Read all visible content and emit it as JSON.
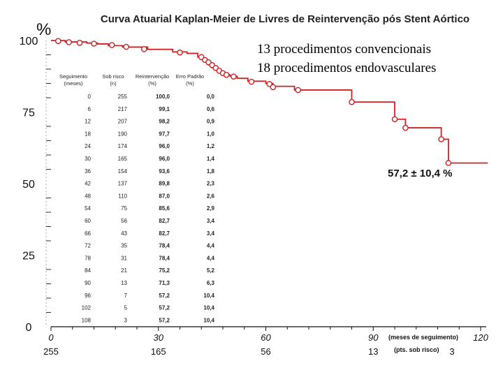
{
  "chart_data": {
    "type": "line",
    "title": "Curva Atuarial Kaplan-Meier de Livres de Reintervenção pós Stent Aórtico",
    "ylabel": "%",
    "xlabel": "(meses de seguimento)",
    "at_risk_label": "(pts. sob risco)",
    "xlim": [
      0,
      120
    ],
    "ylim": [
      0,
      100
    ],
    "x_ticks": [
      "0",
      "30",
      "60",
      "90",
      "120"
    ],
    "y_ticks": [
      "0",
      "25",
      "50",
      "75",
      "100"
    ],
    "at_risk": [
      {
        "x": 0,
        "label": "255"
      },
      {
        "x": 30,
        "label": "165"
      },
      {
        "x": 60,
        "label": "56"
      },
      {
        "x": 90,
        "label": "13"
      },
      {
        "x": 112,
        "label": "3"
      }
    ],
    "final_annotation": "57,2 ± 10,4 %",
    "legend_lines": [
      "13 procedimentos convencionais",
      "18 procedimentos endovasculares"
    ],
    "series": [
      {
        "color": "#cc2222",
        "steps": [
          [
            0,
            100.0
          ],
          [
            4,
            99.5
          ],
          [
            10,
            99.1
          ],
          [
            13,
            98.8
          ],
          [
            16,
            98.2
          ],
          [
            20,
            97.7
          ],
          [
            27,
            96.9
          ],
          [
            34,
            96.0
          ],
          [
            38,
            95.5
          ],
          [
            41,
            94.2
          ],
          [
            42,
            93.5
          ],
          [
            43,
            92.5
          ],
          [
            44,
            91.5
          ],
          [
            45,
            90.5
          ],
          [
            46,
            89.6
          ],
          [
            47,
            88.8
          ],
          [
            48,
            88.0
          ],
          [
            50,
            87.5
          ],
          [
            52,
            86.8
          ],
          [
            55,
            85.8
          ],
          [
            60,
            85.0
          ],
          [
            62,
            84.0
          ],
          [
            68,
            82.7
          ],
          [
            84,
            78.5
          ],
          [
            96,
            72.5
          ],
          [
            99,
            69.5
          ],
          [
            109,
            65.5
          ],
          [
            111,
            57.2
          ],
          [
            122,
            57.2
          ]
        ],
        "censored": [
          [
            2,
            99.8
          ],
          [
            5,
            99.4
          ],
          [
            8,
            99.2
          ],
          [
            12,
            98.9
          ],
          [
            17,
            98.4
          ],
          [
            21,
            97.8
          ],
          [
            26,
            97.0
          ],
          [
            36,
            95.8
          ],
          [
            42,
            94.2
          ],
          [
            43,
            93.2
          ],
          [
            44,
            92.4
          ],
          [
            45,
            91.4
          ],
          [
            46,
            90.4
          ],
          [
            47,
            89.4
          ],
          [
            48,
            88.6
          ],
          [
            49,
            88.0
          ],
          [
            51,
            87.4
          ],
          [
            56,
            85.6
          ],
          [
            61,
            84.8
          ],
          [
            62,
            83.7
          ],
          [
            69,
            82.7
          ],
          [
            84,
            78.5
          ],
          [
            96,
            72.5
          ],
          [
            99,
            69.5
          ],
          [
            109,
            65.5
          ],
          [
            111,
            57.2
          ]
        ]
      }
    ],
    "table": {
      "headers": [
        [
          "Seguimento",
          "(meses)"
        ],
        [
          "Sob risco",
          "(n)"
        ],
        [
          "Reintervenção",
          "(%)"
        ],
        [
          "Erro Padrão",
          "(%)"
        ]
      ],
      "rows": [
        [
          "0",
          "255",
          "100,0",
          "0,0"
        ],
        [
          "6",
          "217",
          "99,1",
          "0,6"
        ],
        [
          "12",
          "207",
          "98,2",
          "0,9"
        ],
        [
          "18",
          "190",
          "97,7",
          "1,0"
        ],
        [
          "24",
          "174",
          "96,0",
          "1,2"
        ],
        [
          "30",
          "165",
          "96,0",
          "1,4"
        ],
        [
          "36",
          "154",
          "93,6",
          "1,8"
        ],
        [
          "42",
          "137",
          "89,8",
          "2,3"
        ],
        [
          "48",
          "110",
          "87,0",
          "2,6"
        ],
        [
          "54",
          "75",
          "85,6",
          "2,9"
        ],
        [
          "60",
          "56",
          "82,7",
          "3,4"
        ],
        [
          "66",
          "43",
          "82,7",
          "3,4"
        ],
        [
          "72",
          "35",
          "78,4",
          "4,4"
        ],
        [
          "78",
          "31",
          "78,4",
          "4,4"
        ],
        [
          "84",
          "21",
          "75,2",
          "5,2"
        ],
        [
          "90",
          "13",
          "71,3",
          "6,3"
        ],
        [
          "96",
          "7",
          "57,2",
          "10,4"
        ],
        [
          "102",
          "5",
          "57,2",
          "10,4"
        ],
        [
          "108",
          "3",
          "57,2",
          "10,4"
        ]
      ]
    }
  }
}
